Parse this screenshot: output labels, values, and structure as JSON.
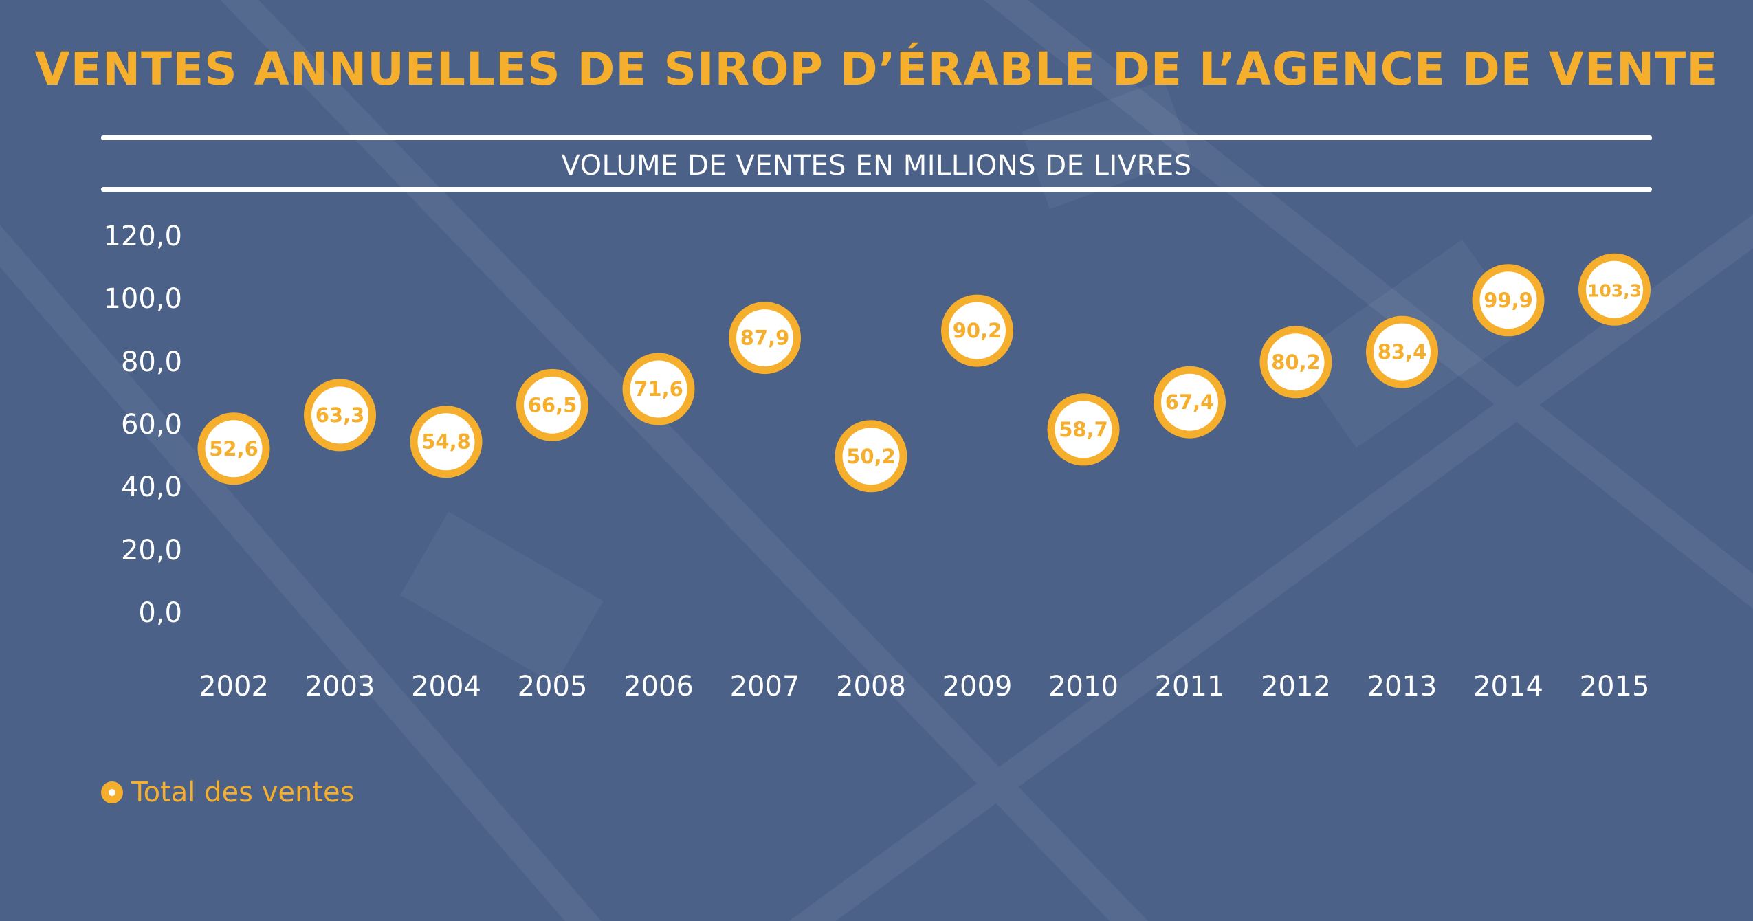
{
  "chart_data": {
    "type": "scatter",
    "title": "VENTES ANNUELLES DE SIROP D’ÉRABLE DE L’AGENCE DE VENTE",
    "subtitle": "VOLUME DE VENTES EN MILLIONS DE LIVRES",
    "categories": [
      "2002",
      "2003",
      "2004",
      "2005",
      "2006",
      "2007",
      "2008",
      "2009",
      "2010",
      "2011",
      "2012",
      "2013",
      "2014",
      "2015"
    ],
    "series": [
      {
        "name": "Total des ventes",
        "values": [
          52.6,
          63.3,
          54.8,
          66.5,
          71.6,
          87.9,
          50.2,
          90.2,
          58.7,
          67.4,
          80.2,
          83.4,
          99.9,
          103.3
        ],
        "labels": [
          "52,6",
          "63,3",
          "54,8",
          "66,5",
          "71,6",
          "87,9",
          "50,2",
          "90,2",
          "58,7",
          "67,4",
          "80,2",
          "83,4",
          "99,9",
          "103,3"
        ]
      }
    ],
    "y_ticks": [
      "0,0",
      "20,0",
      "40,0",
      "60,0",
      "80,0",
      "100,0",
      "120,0"
    ],
    "y_tick_values": [
      0,
      20,
      40,
      60,
      80,
      100,
      120
    ],
    "ylim": [
      0,
      120
    ],
    "grid": false,
    "legend_position": "bottom-left"
  },
  "colors": {
    "background": "#4b6188",
    "accent": "#f6ae2d",
    "text": "#ffffff"
  }
}
